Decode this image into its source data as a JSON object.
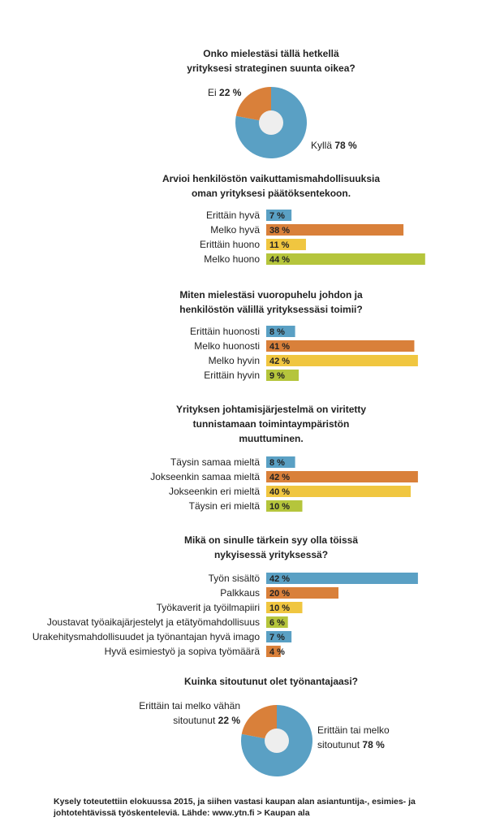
{
  "colors": {
    "blue": "#5aa0c4",
    "orange": "#d9803a",
    "yellow": "#f0c640",
    "green": "#b5c53c",
    "pie_hole": "#eeeeee"
  },
  "chart_data": [
    {
      "type": "pie",
      "title_lines": [
        "Onko mielestäsi tällä hetkellä",
        "yrityksesi strateginen suunta oikea?"
      ],
      "slices": [
        {
          "label": "Kyllä",
          "value": 78,
          "value_text": "78 %",
          "color": "#5aa0c4"
        },
        {
          "label": "Ei",
          "value": 22,
          "value_text": "22 %",
          "color": "#d9803a"
        }
      ]
    },
    {
      "type": "bar",
      "title_lines": [
        "Arvioi henkilöstön vaikuttamismahdollisuuksia",
        "oman yrityksesi päätöksentekoon."
      ],
      "categories": [
        "Erittäin hyvä",
        "Melko hyvä",
        "Erittäin huono",
        "Melko huono"
      ],
      "values": [
        7,
        38,
        11,
        44
      ],
      "value_texts": [
        "7 %",
        "38 %",
        "11 %",
        "44 %"
      ],
      "colors": [
        "#5aa0c4",
        "#d9803a",
        "#f0c640",
        "#b5c53c"
      ]
    },
    {
      "type": "bar",
      "title_lines": [
        "Miten mielestäsi vuoropuhelu johdon ja",
        "henkilöstön välillä yrityksessäsi toimii?"
      ],
      "categories": [
        "Erittäin huonosti",
        "Melko huonosti",
        "Melko hyvin",
        "Erittäin hyvin"
      ],
      "values": [
        8,
        41,
        42,
        9
      ],
      "value_texts": [
        "8 %",
        "41 %",
        "42 %",
        "9 %"
      ],
      "colors": [
        "#5aa0c4",
        "#d9803a",
        "#f0c640",
        "#b5c53c"
      ]
    },
    {
      "type": "bar",
      "title_lines": [
        "Yrityksen johtamisjärjestelmä on viritetty",
        "tunnistamaan toimintaympäristön",
        "muuttuminen."
      ],
      "categories": [
        "Täysin samaa mieltä",
        "Jokseenkin samaa mieltä",
        "Jokseenkin eri mieltä",
        "Täysin eri mieltä"
      ],
      "values": [
        8,
        42,
        40,
        10
      ],
      "value_texts": [
        "8 %",
        "42 %",
        "40 %",
        "10 %"
      ],
      "colors": [
        "#5aa0c4",
        "#d9803a",
        "#f0c640",
        "#b5c53c"
      ]
    },
    {
      "type": "bar",
      "title_lines": [
        "Mikä on sinulle tärkein syy olla töissä",
        "nykyisessä yrityksessä?"
      ],
      "categories": [
        "Työn sisältö",
        "Palkkaus",
        "Työkaverit ja työilmapiiri",
        "Joustavat työaikajärjestelyt ja etätyömahdollisuus",
        "Urakehitysmahdollisuudet ja työnantajan hyvä imago",
        "Hyvä esimiestyö ja sopiva työmäärä"
      ],
      "values": [
        42,
        20,
        10,
        6,
        7,
        4
      ],
      "value_texts": [
        "42 %",
        "20 %",
        "10 %",
        "6 %",
        "7 %",
        "4 %"
      ],
      "colors": [
        "#5aa0c4",
        "#d9803a",
        "#f0c640",
        "#b5c53c",
        "#5aa0c4",
        "#d9803a"
      ]
    },
    {
      "type": "pie",
      "title_lines": [
        "Kuinka sitoutunut olet työnantajaasi?"
      ],
      "slices": [
        {
          "label": "Erittäin tai melko sitoutunut",
          "value": 78,
          "value_text": "78 %",
          "color": "#5aa0c4"
        },
        {
          "label": "Erittäin tai melko vähän sitoutunut",
          "value": 22,
          "value_text": "22 %",
          "color": "#d9803a"
        }
      ]
    }
  ],
  "pie_labels": {
    "pie1": {
      "no_label": "Ei",
      "no_value": "22 %",
      "yes_label": "Kyllä",
      "yes_value": "78 %"
    },
    "pie2": {
      "low_line1": "Erittäin tai melko vähän",
      "low_line2": "sitoutunut",
      "low_value": "22 %",
      "high_line1": "Erittäin tai melko",
      "high_line2": "sitoutunut",
      "high_value": "78 %"
    }
  },
  "footer": {
    "text": "Kysely toteutettiin elokuussa 2015, ja siihen vastasi kaupan alan asiantuntija-, esimies- ja johtotehtävissä työskenteleviä. Lähde: www.ytn.fi > Kaupan ala"
  }
}
